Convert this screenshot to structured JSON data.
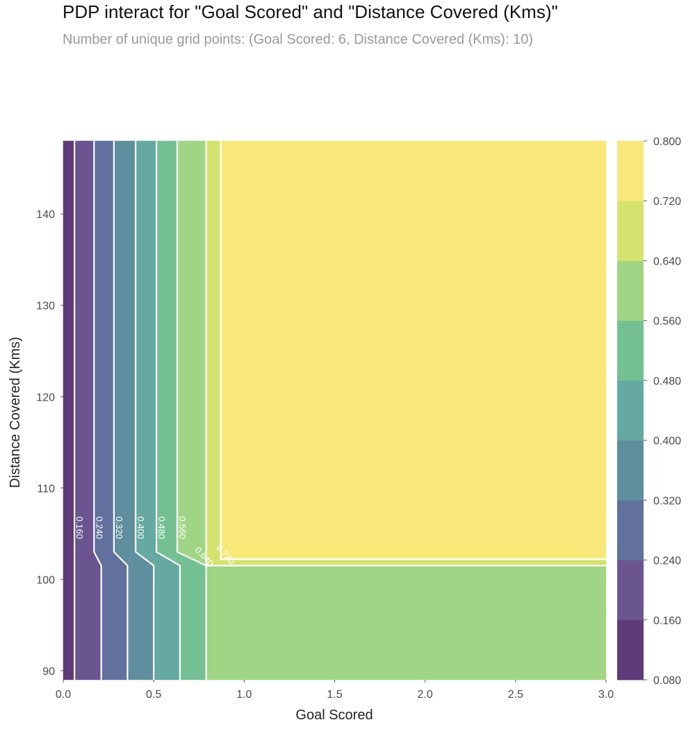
{
  "chart_data": {
    "type": "contour",
    "title": "PDP interact for \"Goal Scored\" and \"Distance Covered (Kms)\"",
    "subtitle": "Number of unique grid points: (Goal Scored: 6, Distance Covered (Kms): 10)",
    "xlabel": "Goal Scored",
    "ylabel": "Distance Covered (Kms)",
    "xlim": [
      0,
      3
    ],
    "ylim": [
      89,
      148
    ],
    "xticks": [
      "0.0",
      "0.5",
      "1.0",
      "1.5",
      "2.0",
      "2.5",
      "3.0"
    ],
    "yticks": [
      "90",
      "100",
      "110",
      "120",
      "130",
      "140"
    ],
    "levels": [
      0.08,
      0.16,
      0.24,
      0.32,
      0.4,
      0.48,
      0.56,
      0.64,
      0.72,
      0.8
    ],
    "colorbar_ticks": [
      "0.080",
      "0.160",
      "0.240",
      "0.320",
      "0.400",
      "0.480",
      "0.560",
      "0.640",
      "0.720",
      "0.800"
    ],
    "level_colors": [
      "#5f3a78",
      "#6a5591",
      "#61709c",
      "#5f8e9f",
      "#65a9a0",
      "#75c093",
      "#a0d585",
      "#d4e36d",
      "#f8e879"
    ],
    "contour_lines": [
      {
        "label": "0.160",
        "x_top": 0.062,
        "x_bottom": 0.062,
        "kink_y": [
          103,
          101.5
        ],
        "x_mid": 0.035
      },
      {
        "label": "0.240",
        "x_top": 0.17,
        "x_bottom": 0.21,
        "kink_y": [
          103,
          101.5
        ],
        "x_mid": 0.17
      },
      {
        "label": "0.320",
        "x_top": 0.28,
        "x_bottom": 0.355,
        "kink_y": [
          103,
          101.5
        ],
        "x_mid": 0.28
      },
      {
        "label": "0.400",
        "x_top": 0.4,
        "x_bottom": 0.5,
        "kink_y": [
          103,
          101.5
        ],
        "x_mid": 0.4
      },
      {
        "label": "0.480",
        "x_top": 0.515,
        "x_bottom": 0.645,
        "kink_y": [
          103,
          101.5
        ],
        "x_mid": 0.515
      },
      {
        "label": "0.560",
        "x_top": 0.63,
        "x_bottom": 0.79,
        "kink_y": [
          103,
          101.5
        ],
        "x_mid": 0.63
      }
    ],
    "corner_lines": [
      {
        "label": "0.640",
        "x": 0.79,
        "y": 101.5
      },
      {
        "label": "0.720",
        "x": 0.87,
        "y": 102.2
      }
    ],
    "grid": false
  }
}
